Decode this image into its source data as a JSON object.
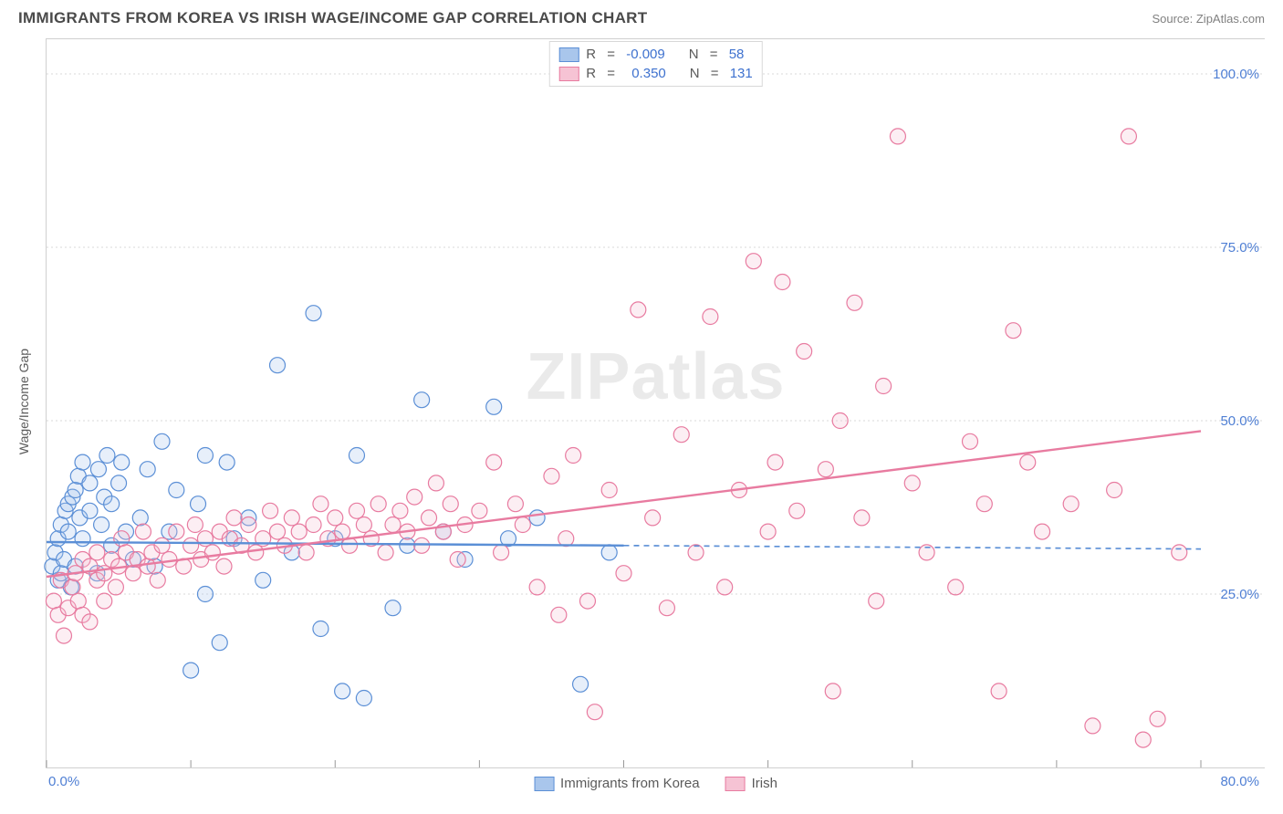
{
  "header": {
    "title": "IMMIGRANTS FROM KOREA VS IRISH WAGE/INCOME GAP CORRELATION CHART",
    "source_prefix": "Source: ",
    "source_name": "ZipAtlas.com"
  },
  "chart": {
    "type": "scatter",
    "ylabel": "Wage/Income Gap",
    "watermark": "ZIPatlas",
    "background_color": "#ffffff",
    "grid_color": "#d8d8d8",
    "axis_label_color": "#4f7fd4",
    "xlim": [
      0,
      80
    ],
    "ylim": [
      0,
      105
    ],
    "x_ticks": [
      0,
      10,
      20,
      30,
      40,
      50,
      60,
      70,
      80
    ],
    "x_tick_labels_shown": {
      "0": "0.0%",
      "80": "80.0%"
    },
    "y_gridlines": [
      25,
      50,
      75,
      100
    ],
    "y_tick_labels": {
      "25": "25.0%",
      "50": "50.0%",
      "75": "75.0%",
      "100": "100.0%"
    },
    "marker_radius": 8.5,
    "marker_stroke_width": 1.2,
    "marker_fill_opacity": 0.28,
    "series": [
      {
        "key": "korea",
        "label": "Immigrants from Korea",
        "color_stroke": "#5b8fd6",
        "color_fill": "#a9c6ec",
        "R": "-0.009",
        "N": "58",
        "trend": {
          "x1": 0,
          "y1": 32.5,
          "x2": 40,
          "y2": 32.0,
          "dash_to_x": 80,
          "width": 2.4
        },
        "points": [
          [
            0.4,
            29
          ],
          [
            0.6,
            31
          ],
          [
            0.8,
            27
          ],
          [
            0.8,
            33
          ],
          [
            1.0,
            28
          ],
          [
            1.0,
            35
          ],
          [
            1.2,
            30
          ],
          [
            1.3,
            37
          ],
          [
            1.5,
            38
          ],
          [
            1.5,
            34
          ],
          [
            1.7,
            26
          ],
          [
            1.8,
            39
          ],
          [
            2.0,
            40
          ],
          [
            2.0,
            29
          ],
          [
            2.2,
            42
          ],
          [
            2.3,
            36
          ],
          [
            2.5,
            33
          ],
          [
            2.5,
            44
          ],
          [
            3.0,
            41
          ],
          [
            3.0,
            37
          ],
          [
            3.5,
            28
          ],
          [
            3.6,
            43
          ],
          [
            3.8,
            35
          ],
          [
            4.0,
            39
          ],
          [
            4.2,
            45
          ],
          [
            4.5,
            32
          ],
          [
            4.5,
            38
          ],
          [
            5.0,
            41
          ],
          [
            5.2,
            44
          ],
          [
            5.5,
            34
          ],
          [
            6.0,
            30
          ],
          [
            6.5,
            36
          ],
          [
            7.0,
            43
          ],
          [
            7.5,
            29
          ],
          [
            8.0,
            47
          ],
          [
            8.5,
            34
          ],
          [
            9.0,
            40
          ],
          [
            10.0,
            14
          ],
          [
            10.5,
            38
          ],
          [
            11.0,
            25
          ],
          [
            11.0,
            45
          ],
          [
            12.0,
            18
          ],
          [
            12.5,
            44
          ],
          [
            13.0,
            33
          ],
          [
            14.0,
            36
          ],
          [
            15.0,
            27
          ],
          [
            16.0,
            58
          ],
          [
            17.0,
            31
          ],
          [
            18.5,
            65.5
          ],
          [
            19.0,
            20
          ],
          [
            20.0,
            33
          ],
          [
            20.5,
            11
          ],
          [
            21.5,
            45
          ],
          [
            22.0,
            10
          ],
          [
            24.0,
            23
          ],
          [
            25.0,
            32
          ],
          [
            26.0,
            53
          ],
          [
            27.5,
            34
          ],
          [
            29.0,
            30
          ],
          [
            31.0,
            52
          ],
          [
            32.0,
            33
          ],
          [
            34.0,
            36
          ],
          [
            37.0,
            12
          ],
          [
            39.0,
            31
          ]
        ]
      },
      {
        "key": "irish",
        "label": "Irish",
        "color_stroke": "#e87ba0",
        "color_fill": "#f6c3d4",
        "R": "0.350",
        "N": "131",
        "trend": {
          "x1": 0,
          "y1": 27.5,
          "x2": 80,
          "y2": 48.5,
          "width": 2.4
        },
        "points": [
          [
            0.5,
            24
          ],
          [
            0.8,
            22
          ],
          [
            1.0,
            27
          ],
          [
            1.2,
            19
          ],
          [
            1.5,
            23
          ],
          [
            1.8,
            26
          ],
          [
            2.0,
            28
          ],
          [
            2.2,
            24
          ],
          [
            2.5,
            22
          ],
          [
            2.5,
            30
          ],
          [
            3.0,
            29
          ],
          [
            3.0,
            21
          ],
          [
            3.5,
            27
          ],
          [
            3.5,
            31
          ],
          [
            4.0,
            28
          ],
          [
            4.0,
            24
          ],
          [
            4.5,
            30
          ],
          [
            4.8,
            26
          ],
          [
            5.0,
            29
          ],
          [
            5.2,
            33
          ],
          [
            5.5,
            31
          ],
          [
            6.0,
            28
          ],
          [
            6.3,
            30
          ],
          [
            6.7,
            34
          ],
          [
            7.0,
            29
          ],
          [
            7.3,
            31
          ],
          [
            7.7,
            27
          ],
          [
            8.0,
            32
          ],
          [
            8.5,
            30
          ],
          [
            9.0,
            34
          ],
          [
            9.5,
            29
          ],
          [
            10.0,
            32
          ],
          [
            10.3,
            35
          ],
          [
            10.7,
            30
          ],
          [
            11.0,
            33
          ],
          [
            11.5,
            31
          ],
          [
            12.0,
            34
          ],
          [
            12.3,
            29
          ],
          [
            12.7,
            33
          ],
          [
            13.0,
            36
          ],
          [
            13.5,
            32
          ],
          [
            14.0,
            35
          ],
          [
            14.5,
            31
          ],
          [
            15.0,
            33
          ],
          [
            15.5,
            37
          ],
          [
            16.0,
            34
          ],
          [
            16.5,
            32
          ],
          [
            17.0,
            36
          ],
          [
            17.5,
            34
          ],
          [
            18.0,
            31
          ],
          [
            18.5,
            35
          ],
          [
            19.0,
            38
          ],
          [
            19.5,
            33
          ],
          [
            20.0,
            36
          ],
          [
            20.5,
            34
          ],
          [
            21.0,
            32
          ],
          [
            21.5,
            37
          ],
          [
            22.0,
            35
          ],
          [
            22.5,
            33
          ],
          [
            23.0,
            38
          ],
          [
            23.5,
            31
          ],
          [
            24.0,
            35
          ],
          [
            24.5,
            37
          ],
          [
            25.0,
            34
          ],
          [
            25.5,
            39
          ],
          [
            26.0,
            32
          ],
          [
            26.5,
            36
          ],
          [
            27.0,
            41
          ],
          [
            27.5,
            34
          ],
          [
            28.0,
            38
          ],
          [
            28.5,
            30
          ],
          [
            29.0,
            35
          ],
          [
            30.0,
            37
          ],
          [
            31.0,
            44
          ],
          [
            31.5,
            31
          ],
          [
            32.5,
            38
          ],
          [
            33.0,
            35
          ],
          [
            34.0,
            26
          ],
          [
            35.0,
            42
          ],
          [
            35.5,
            22
          ],
          [
            36.0,
            33
          ],
          [
            36.5,
            45
          ],
          [
            37.5,
            24
          ],
          [
            38.0,
            8
          ],
          [
            39.0,
            40
          ],
          [
            40.0,
            28
          ],
          [
            41.0,
            66
          ],
          [
            42.0,
            36
          ],
          [
            43.0,
            23
          ],
          [
            44.0,
            48
          ],
          [
            45.0,
            31
          ],
          [
            46.0,
            65
          ],
          [
            47.0,
            26
          ],
          [
            48.0,
            40
          ],
          [
            49.0,
            73
          ],
          [
            50.0,
            34
          ],
          [
            50.5,
            44
          ],
          [
            51.0,
            70
          ],
          [
            52.0,
            37
          ],
          [
            52.5,
            60
          ],
          [
            54.0,
            43
          ],
          [
            54.5,
            11
          ],
          [
            55.0,
            50
          ],
          [
            56.0,
            67
          ],
          [
            56.5,
            36
          ],
          [
            57.5,
            24
          ],
          [
            58.0,
            55
          ],
          [
            59.0,
            91
          ],
          [
            60.0,
            41
          ],
          [
            61.0,
            31
          ],
          [
            63.0,
            26
          ],
          [
            64.0,
            47
          ],
          [
            65.0,
            38
          ],
          [
            66.0,
            11
          ],
          [
            67.0,
            63
          ],
          [
            68.0,
            44
          ],
          [
            69.0,
            34
          ],
          [
            71.0,
            38
          ],
          [
            72.5,
            6
          ],
          [
            74.0,
            40
          ],
          [
            75.0,
            91
          ],
          [
            76.0,
            4
          ],
          [
            77.0,
            7
          ],
          [
            78.5,
            31
          ]
        ]
      }
    ],
    "legend_top": {
      "r_label": "R",
      "n_label": "N",
      "eq": " = "
    }
  }
}
